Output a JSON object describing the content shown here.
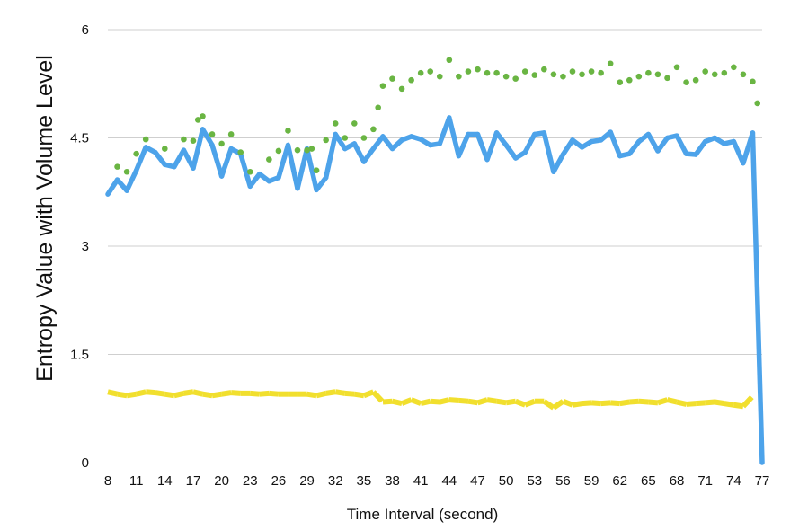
{
  "chart_data": {
    "type": "line",
    "title": "",
    "xlabel": "Time Interval (second)",
    "ylabel": "Entropy Value with Volume Level",
    "xlim": [
      8,
      77
    ],
    "ylim": [
      0,
      6
    ],
    "xticks": [
      "8",
      "11",
      "14",
      "17",
      "20",
      "23",
      "26",
      "29",
      "32",
      "35",
      "38",
      "41",
      "44",
      "47",
      "50",
      "53",
      "56",
      "59",
      "62",
      "65",
      "68",
      "71",
      "74",
      "77"
    ],
    "yticks": [
      "0",
      "1.5",
      "3",
      "4.5",
      "6"
    ],
    "grid": "horizontal",
    "legend": "none",
    "colors": {
      "blue": "#4da3ea",
      "green": "#6ab543",
      "yellow": "#f1df2e"
    },
    "series": [
      {
        "style": "solid",
        "color": "#4da3ea",
        "x": [
          8,
          9,
          10,
          11,
          12,
          13,
          14,
          15,
          16,
          17,
          18,
          19,
          20,
          21,
          22,
          23,
          24,
          25,
          26,
          27,
          28,
          29,
          30,
          31,
          32,
          33,
          34,
          35,
          36,
          37,
          38,
          39,
          40,
          41,
          42,
          43,
          44,
          45,
          46,
          47,
          48,
          49,
          50,
          51,
          52,
          53,
          54,
          55,
          56,
          57,
          58,
          59,
          60,
          61,
          62,
          63,
          64,
          65,
          66,
          67,
          68,
          69,
          70,
          71,
          72,
          73,
          74,
          75,
          76,
          77
        ],
        "values": [
          3.72,
          3.92,
          3.77,
          4.05,
          4.37,
          4.3,
          4.13,
          4.1,
          4.33,
          4.08,
          4.62,
          4.4,
          3.97,
          4.35,
          4.28,
          3.83,
          4.0,
          3.9,
          3.95,
          4.4,
          3.8,
          4.35,
          3.78,
          3.95,
          4.55,
          4.35,
          4.42,
          4.17,
          4.35,
          4.52,
          4.35,
          4.47,
          4.52,
          4.48,
          4.4,
          4.42,
          4.78,
          4.25,
          4.55,
          4.55,
          4.2,
          4.57,
          4.4,
          4.22,
          4.3,
          4.55,
          4.57,
          4.03,
          4.27,
          4.47,
          4.37,
          4.45,
          4.47,
          4.58,
          4.25,
          4.28,
          4.45,
          4.55,
          4.32,
          4.5,
          4.53,
          4.28,
          4.27,
          4.45,
          4.5,
          4.42,
          4.45,
          4.15,
          4.57,
          0.0
        ]
      },
      {
        "style": "dotted",
        "color": "#6ab543",
        "x": [
          9,
          10,
          11,
          12,
          14,
          16,
          17,
          17.5,
          18,
          19,
          20,
          21,
          22,
          23,
          25,
          26,
          27,
          28,
          29,
          29.5,
          30,
          31,
          32,
          33,
          34,
          35,
          36,
          36.5,
          37,
          38,
          39,
          40,
          41,
          42,
          43,
          44,
          45,
          46,
          47,
          48,
          49,
          50,
          51,
          52,
          53,
          54,
          55,
          56,
          57,
          58,
          59,
          60,
          61,
          62,
          63,
          64,
          65,
          66,
          67,
          68,
          69,
          70,
          71,
          72,
          73,
          74,
          75,
          76,
          76.5
        ],
        "values": [
          4.1,
          4.03,
          4.28,
          4.48,
          4.35,
          4.48,
          4.46,
          4.75,
          4.8,
          4.55,
          4.42,
          4.55,
          4.3,
          4.03,
          4.2,
          4.32,
          4.6,
          4.33,
          4.33,
          4.35,
          4.05,
          4.47,
          4.7,
          4.5,
          4.7,
          4.5,
          4.62,
          4.92,
          5.22,
          5.32,
          5.18,
          5.3,
          5.4,
          5.42,
          5.35,
          5.58,
          5.35,
          5.42,
          5.45,
          5.4,
          5.4,
          5.35,
          5.32,
          5.42,
          5.37,
          5.45,
          5.38,
          5.35,
          5.42,
          5.38,
          5.42,
          5.4,
          5.53,
          5.27,
          5.3,
          5.35,
          5.4,
          5.38,
          5.33,
          5.48,
          5.27,
          5.3,
          5.42,
          5.38,
          5.4,
          5.48,
          5.38,
          5.28,
          4.98
        ]
      },
      {
        "style": "dashed",
        "color": "#f1df2e",
        "x": [
          8,
          9,
          10,
          11,
          12,
          13,
          14,
          15,
          16,
          17,
          18,
          19,
          20,
          21,
          22,
          23,
          24,
          25,
          26,
          27,
          28,
          29,
          30,
          31,
          32,
          33,
          34,
          35,
          36,
          37,
          38,
          39,
          40,
          41,
          42,
          43,
          44,
          45,
          46,
          47,
          48,
          49,
          50,
          51,
          52,
          53,
          54,
          55,
          56,
          57,
          58,
          59,
          60,
          61,
          62,
          63,
          64,
          65,
          66,
          67,
          68,
          69,
          70,
          71,
          72,
          73,
          74,
          75,
          76
        ],
        "values": [
          0.98,
          0.95,
          0.93,
          0.95,
          0.98,
          0.97,
          0.95,
          0.93,
          0.96,
          0.98,
          0.95,
          0.93,
          0.95,
          0.97,
          0.96,
          0.96,
          0.95,
          0.96,
          0.95,
          0.95,
          0.95,
          0.95,
          0.93,
          0.96,
          0.98,
          0.96,
          0.95,
          0.93,
          0.98,
          0.84,
          0.85,
          0.82,
          0.87,
          0.82,
          0.85,
          0.84,
          0.87,
          0.86,
          0.85,
          0.83,
          0.87,
          0.85,
          0.83,
          0.85,
          0.8,
          0.85,
          0.85,
          0.76,
          0.85,
          0.8,
          0.82,
          0.83,
          0.82,
          0.83,
          0.82,
          0.84,
          0.85,
          0.84,
          0.83,
          0.87,
          0.84,
          0.81,
          0.82,
          0.83,
          0.84,
          0.82,
          0.8,
          0.78,
          0.92
        ]
      }
    ]
  }
}
